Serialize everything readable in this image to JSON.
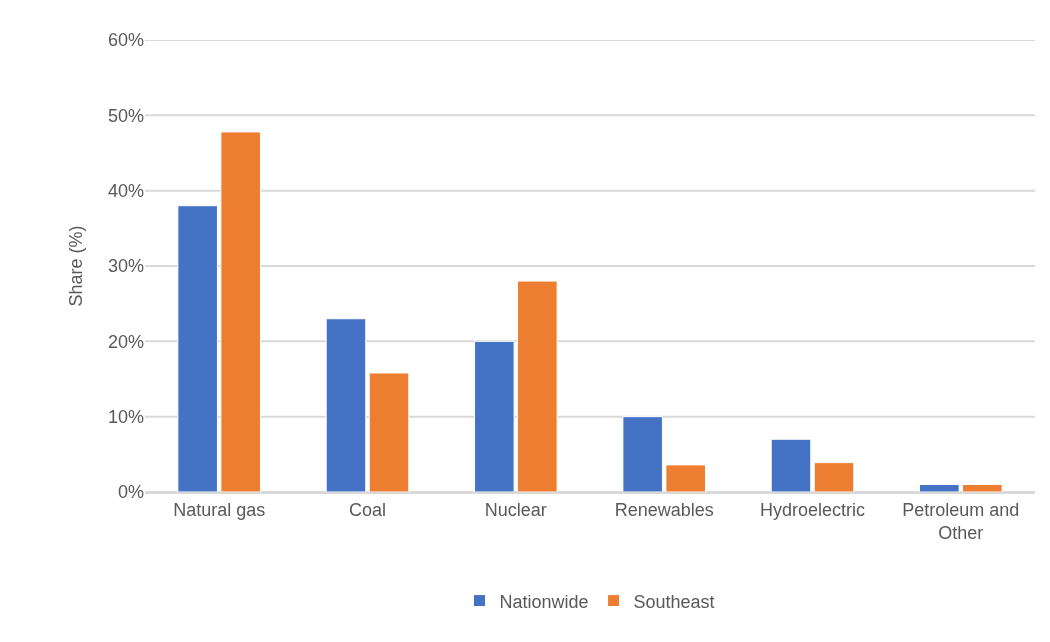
{
  "chart_data": {
    "type": "bar",
    "ylabel": "Share (%)",
    "categories": [
      "Natural gas",
      "Coal",
      "Nuclear",
      "Renewables",
      "Hydroelectric",
      "Petroleum and Other"
    ],
    "series": [
      {
        "name": "Nationwide",
        "color": "#4472c4",
        "values": [
          38,
          23,
          20,
          10,
          7,
          1
        ]
      },
      {
        "name": "Southeast",
        "color": "#ed7d31",
        "values": [
          47.8,
          15.8,
          28,
          3.6,
          3.9,
          1
        ]
      }
    ],
    "ylim": [
      0,
      60
    ],
    "yticks": [
      {
        "value": 0,
        "label": "0%"
      },
      {
        "value": 10,
        "label": "10%"
      },
      {
        "value": 20,
        "label": "20%"
      },
      {
        "value": 30,
        "label": "30%"
      },
      {
        "value": 40,
        "label": "40%"
      },
      {
        "value": 50,
        "label": "50%"
      },
      {
        "value": 60,
        "label": "60%"
      }
    ],
    "grid": "y",
    "legend": "bottom"
  }
}
